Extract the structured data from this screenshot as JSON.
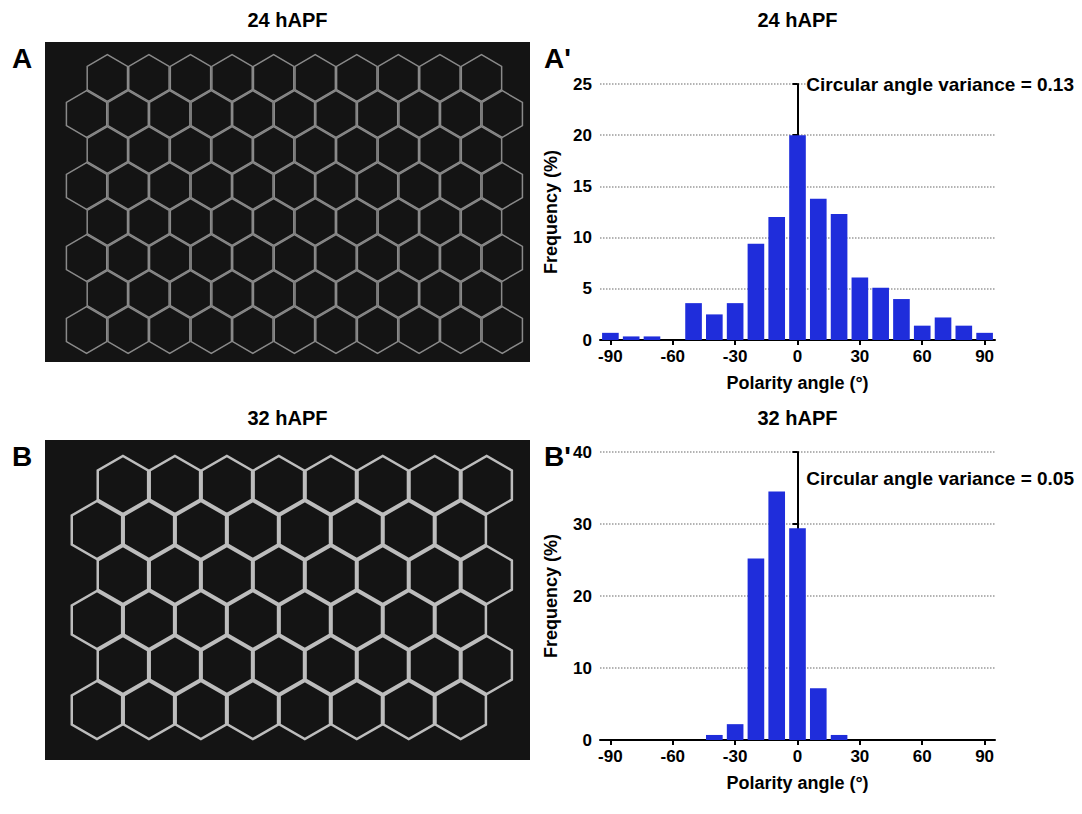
{
  "figure": {
    "images": [
      {
        "panel_letter": "A",
        "title": "24 hAPF"
      },
      {
        "panel_letter": "B",
        "title": "32 hAPF"
      }
    ]
  },
  "chart_data": [
    {
      "type": "histogram",
      "panel_letter": "A'",
      "title": "24 hAPF",
      "annotation": "Circular angle variance = 0.13",
      "x_label": "Polarity angle (°)",
      "y_label": "Frequency (%)",
      "bins": [
        -95,
        -85,
        -75,
        -65,
        -55,
        -45,
        -35,
        -25,
        -15,
        -5,
        5,
        15,
        25,
        35,
        45,
        55,
        65,
        75,
        85,
        95
      ],
      "values": [
        0.7,
        0.35,
        0.35,
        0,
        3.6,
        2.5,
        3.6,
        9.4,
        12,
        20,
        13.8,
        12.3,
        6.1,
        5.1,
        4,
        1.4,
        2.2,
        1.4,
        0.7
      ],
      "color": "#1f2ddb",
      "xlim": [
        -95,
        95
      ],
      "xticks": [
        -90,
        -60,
        -30,
        0,
        30,
        60,
        90
      ],
      "ylim": [
        0,
        25
      ],
      "yticks": [
        0,
        5,
        10,
        15,
        20,
        25
      ],
      "grid": true
    },
    {
      "type": "histogram",
      "panel_letter": "B'",
      "title": "32 hAPF",
      "annotation": "Circular angle variance = 0.05",
      "x_label": "Polarity angle (°)",
      "y_label": "Frequency (%)",
      "bins": [
        -95,
        -85,
        -75,
        -65,
        -55,
        -45,
        -35,
        -25,
        -15,
        -5,
        5,
        15,
        25,
        35,
        45,
        55,
        65,
        75,
        85,
        95
      ],
      "values": [
        0,
        0,
        0,
        0,
        0,
        0.7,
        2.2,
        25.2,
        34.5,
        29.4,
        7.2,
        0.7,
        0,
        0,
        0,
        0,
        0,
        0,
        0
      ],
      "color": "#1f2ddb",
      "xlim": [
        -95,
        95
      ],
      "xticks": [
        -90,
        -60,
        -30,
        0,
        30,
        60,
        90
      ],
      "ylim": [
        0,
        40
      ],
      "yticks": [
        0,
        10,
        20,
        30,
        40
      ],
      "grid": true
    }
  ]
}
